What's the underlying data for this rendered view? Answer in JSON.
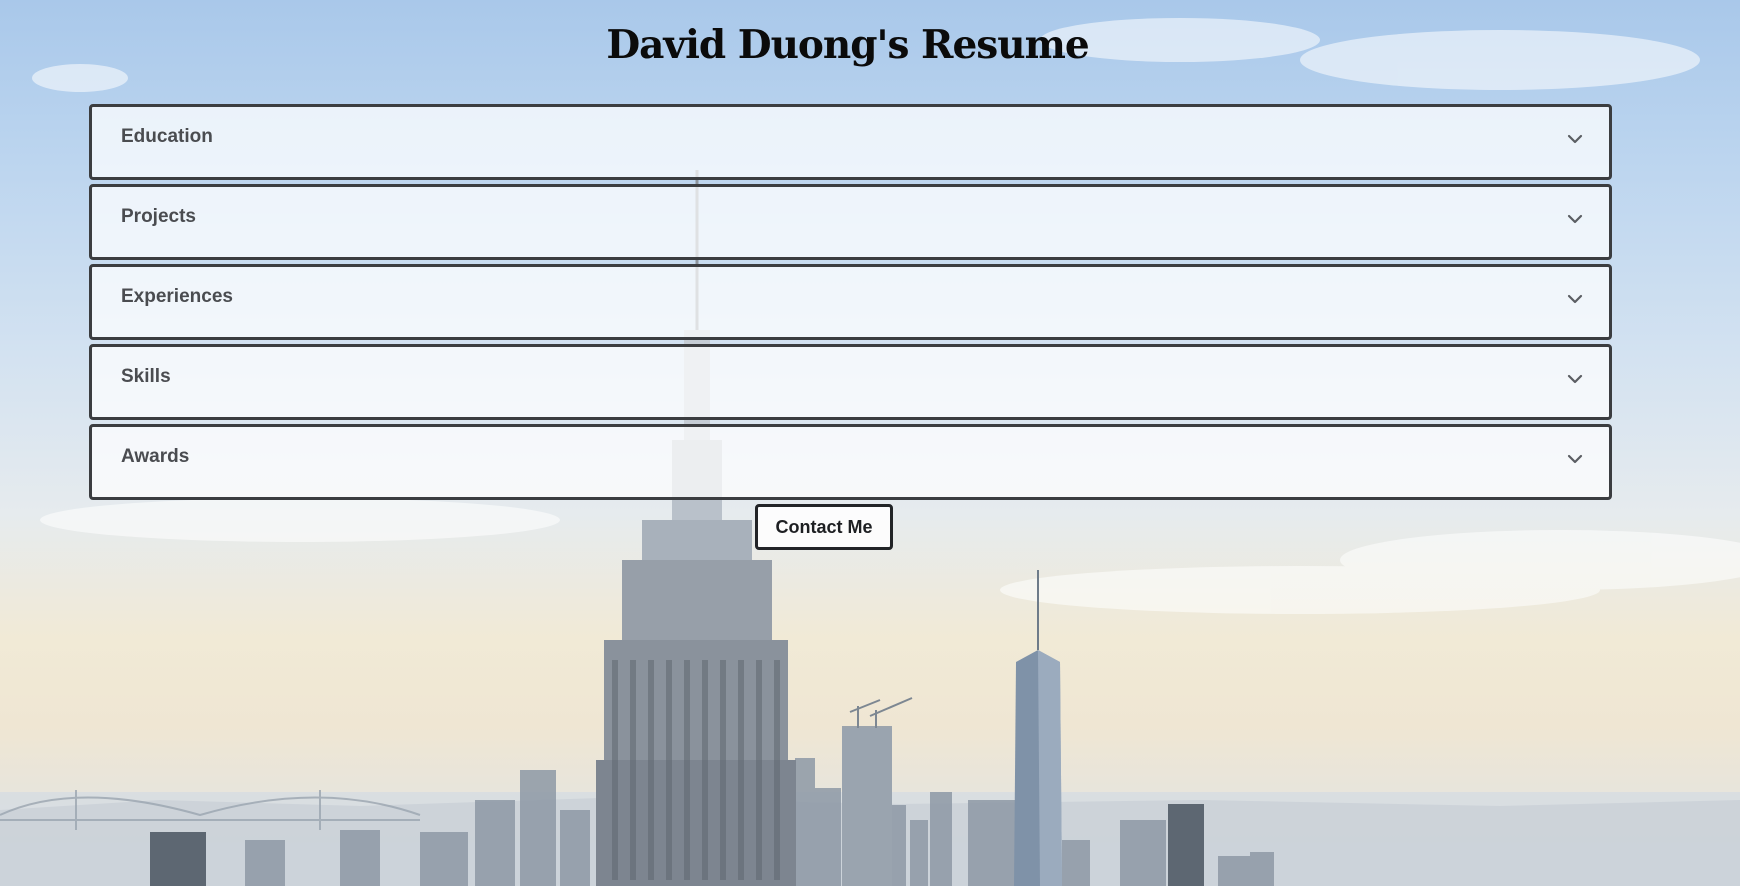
{
  "page": {
    "title": "David Duong's Resume"
  },
  "accordion": {
    "items": [
      {
        "label": "Education",
        "icon": "chevron-down-icon"
      },
      {
        "label": "Projects",
        "icon": "chevron-down-icon"
      },
      {
        "label": "Experiences",
        "icon": "chevron-down-icon"
      },
      {
        "label": "Skills",
        "icon": "chevron-down-icon"
      },
      {
        "label": "Awards",
        "icon": "chevron-down-icon"
      }
    ]
  },
  "contact": {
    "label": "Contact Me"
  },
  "colors": {
    "panel_border": "#3b3d40",
    "label_text": "#4a4c50",
    "title_text": "#0b0b0b"
  }
}
